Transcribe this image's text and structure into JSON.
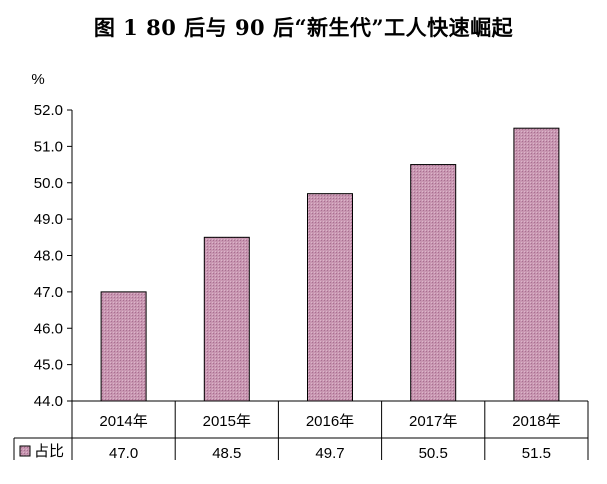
{
  "chart_data": {
    "type": "bar",
    "title": "图 1 80 后与 90 后“新生代”工人快速崛起",
    "y_unit": "%",
    "categories": [
      "2014年",
      "2015年",
      "2016年",
      "2017年",
      "2018年"
    ],
    "series": [
      {
        "name": "占比",
        "values": [
          47.0,
          48.5,
          49.7,
          50.5,
          51.5
        ],
        "color": "#c896b1"
      }
    ],
    "value_labels": [
      "47.0",
      "48.5",
      "49.7",
      "50.5",
      "51.5"
    ],
    "ylim": [
      44.0,
      52.0
    ],
    "yticks": [
      "44.0",
      "45.0",
      "46.0",
      "47.0",
      "48.0",
      "49.0",
      "50.0",
      "51.0",
      "52.0"
    ],
    "grid": false,
    "legend": "data-table-left",
    "data_table": true
  }
}
